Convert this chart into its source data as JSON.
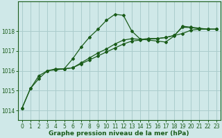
{
  "background_color": "#cfe8e8",
  "grid_color": "#aacccc",
  "line_color": "#1a5c1a",
  "xlabel": "Graphe pression niveau de la mer (hPa)",
  "xlim": [
    -0.5,
    23.5
  ],
  "ylim": [
    1013.5,
    1019.5
  ],
  "yticks": [
    1014,
    1015,
    1016,
    1017,
    1018
  ],
  "xticks": [
    0,
    1,
    2,
    3,
    4,
    5,
    6,
    7,
    8,
    9,
    10,
    11,
    12,
    13,
    14,
    15,
    16,
    17,
    18,
    19,
    20,
    21,
    22,
    23
  ],
  "series1_x": [
    0,
    1,
    2,
    3,
    4,
    5,
    6,
    7,
    8,
    9,
    10,
    11,
    12,
    13,
    14,
    15,
    16,
    17,
    18,
    19,
    20,
    21,
    22,
    23
  ],
  "series1_y": [
    1014.1,
    1015.1,
    1015.6,
    1016.0,
    1016.1,
    1016.1,
    1016.6,
    1017.2,
    1017.7,
    1018.1,
    1018.55,
    1018.85,
    1018.8,
    1018.0,
    1017.6,
    1017.55,
    1017.5,
    1017.45,
    1017.75,
    1018.25,
    1018.2,
    1018.15,
    1018.1,
    1018.1
  ],
  "series2_x": [
    0,
    1,
    2,
    3,
    4,
    5,
    6,
    7,
    8,
    9,
    10,
    11,
    12,
    13,
    14,
    15,
    16,
    17,
    18,
    19,
    20,
    21,
    22,
    23
  ],
  "series2_y": [
    1014.1,
    1015.1,
    1015.75,
    1016.0,
    1016.05,
    1016.1,
    1016.15,
    1016.35,
    1016.55,
    1016.75,
    1016.95,
    1017.15,
    1017.35,
    1017.5,
    1017.55,
    1017.6,
    1017.62,
    1017.68,
    1017.78,
    1017.88,
    1018.05,
    1018.1,
    1018.1,
    1018.1
  ],
  "series3_x": [
    4,
    5,
    6,
    7,
    8,
    9,
    10,
    11,
    12,
    13,
    14,
    15,
    16,
    17,
    18,
    19,
    20,
    21,
    22,
    23
  ],
  "series3_y": [
    1016.05,
    1016.1,
    1016.15,
    1016.4,
    1016.65,
    1016.9,
    1017.1,
    1017.35,
    1017.55,
    1017.62,
    1017.58,
    1017.63,
    1017.63,
    1017.68,
    1017.78,
    1018.2,
    1018.18,
    1018.12,
    1018.1,
    1018.1
  ],
  "tick_fontsize": 5.5,
  "xlabel_fontsize": 6.5
}
